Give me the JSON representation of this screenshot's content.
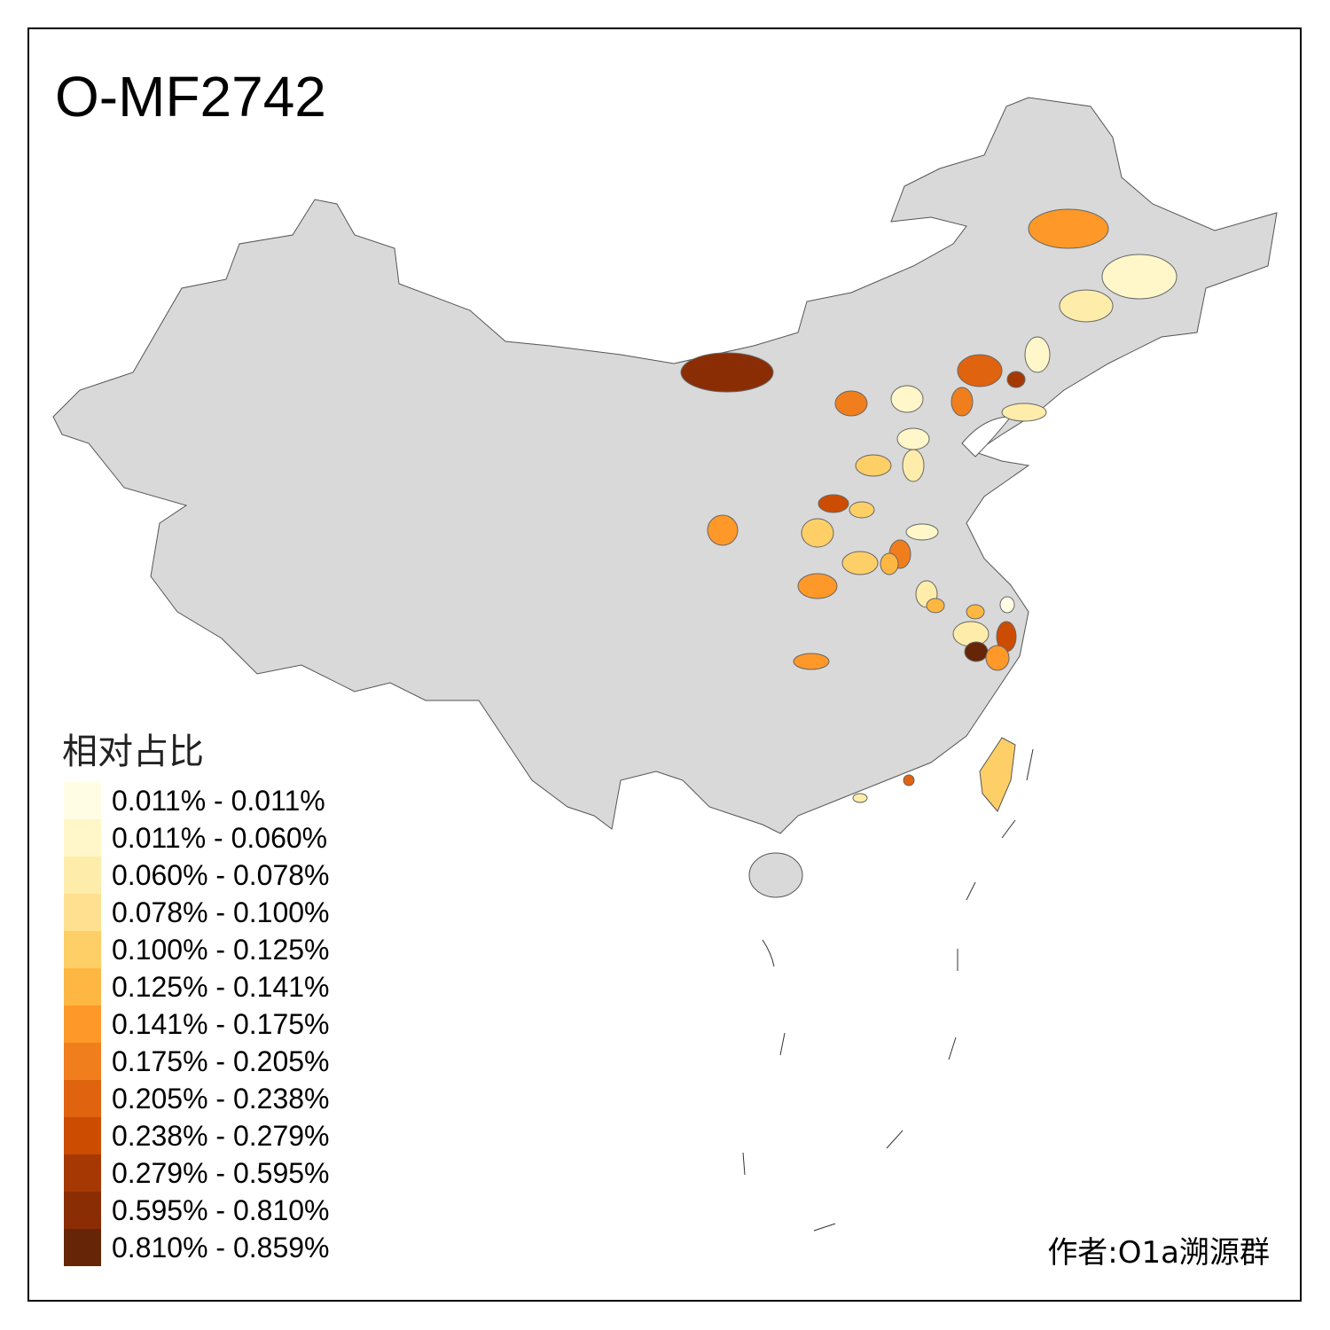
{
  "title": "O-MF2742",
  "legend": {
    "title": "相对占比",
    "items": [
      {
        "label": "0.011% - 0.011%",
        "color": "#FFFEE5"
      },
      {
        "label": "0.011% - 0.060%",
        "color": "#FFF7C9"
      },
      {
        "label": "0.060% - 0.078%",
        "color": "#FEEDAA"
      },
      {
        "label": "0.078% - 0.100%",
        "color": "#FEE090"
      },
      {
        "label": "0.100% - 0.125%",
        "color": "#FECF66"
      },
      {
        "label": "0.125% - 0.141%",
        "color": "#FEB743"
      },
      {
        "label": "0.141% - 0.175%",
        "color": "#FE9829"
      },
      {
        "label": "0.175% - 0.205%",
        "color": "#F17E1D"
      },
      {
        "label": "0.205% - 0.238%",
        "color": "#E0630F"
      },
      {
        "label": "0.238% - 0.279%",
        "color": "#CC4C02"
      },
      {
        "label": "0.279% - 0.595%",
        "color": "#A63903"
      },
      {
        "label": "0.595% - 0.810%",
        "color": "#8A2D04"
      },
      {
        "label": "0.810% - 0.859%",
        "color": "#662506"
      }
    ]
  },
  "map": {
    "base_color": "#D9D9D9",
    "border_color": "#555555"
  },
  "author": "作者:O1a溯源群"
}
